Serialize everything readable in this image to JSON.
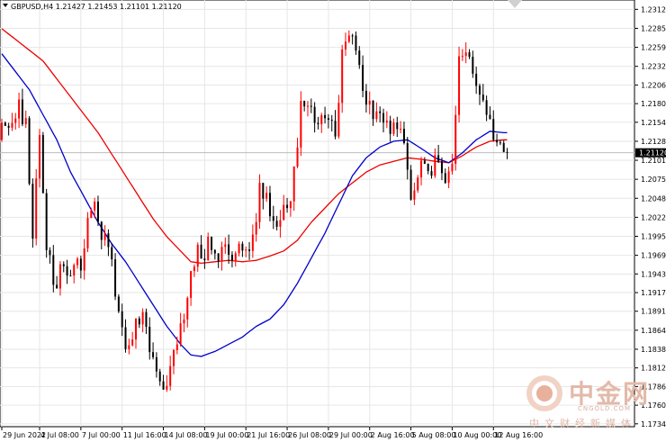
{
  "symbol_line": "GBPUSD,H4  1.21427 1.21453 1.21101 1.21120",
  "watermark": {
    "brand": "中金网",
    "url": "CNGOLD.COM",
    "subtitle": "中文财经新媒体"
  },
  "colors": {
    "bull": "#ff0000",
    "bear": "#000000",
    "ma_fast": "#0000cc",
    "ma_slow": "#ee0000",
    "grid": "#e6e6e6"
  },
  "chart_data": {
    "type": "candlestick",
    "symbol": "GBPUSD",
    "timeframe": "H4",
    "last_price": "1.21120",
    "y_ticks": [
      "1.23120",
      "1.22855",
      "1.22590",
      "1.22325",
      "1.22065",
      "1.21805",
      "1.21545",
      "1.21280",
      "1.21015",
      "1.20750",
      "1.20485",
      "1.20220",
      "1.19955",
      "1.19690",
      "1.19430",
      "1.19170",
      "1.18910",
      "1.18645",
      "1.18380",
      "1.18120",
      "1.17860",
      "1.17600",
      "1.17340"
    ],
    "ylim": [
      1.173,
      1.2325
    ],
    "x_labels": [
      "29 Jun 2022",
      "4 Jul 08:00",
      "7 Jul 00:00",
      "11 Jul 16:00",
      "14 Jul 08:00",
      "19 Jul 00:00",
      "21 Jul 16:00",
      "26 Jul 08:00",
      "29 Jul 00:00",
      "2 Aug 16:00",
      "5 Aug 08:00",
      "10 Aug 00:00",
      "12 Aug 16:00"
    ],
    "x_label_bars": [
      0,
      11,
      23,
      35,
      47,
      59,
      71,
      83,
      95,
      107,
      119,
      131,
      143
    ],
    "anchors": [
      [
        0,
        1.214
      ],
      [
        3,
        1.215
      ],
      [
        5,
        1.2175
      ],
      [
        7,
        1.2155
      ],
      [
        9,
        1.1995
      ],
      [
        11,
        1.213
      ],
      [
        13,
        1.199
      ],
      [
        15,
        1.1925
      ],
      [
        17,
        1.195
      ],
      [
        19,
        1.193
      ],
      [
        21,
        1.197
      ],
      [
        23,
        1.195
      ],
      [
        25,
        1.201
      ],
      [
        27,
        1.2035
      ],
      [
        29,
        1.199
      ],
      [
        31,
        1.1995
      ],
      [
        33,
        1.192
      ],
      [
        35,
        1.187
      ],
      [
        37,
        1.183
      ],
      [
        39,
        1.187
      ],
      [
        41,
        1.189
      ],
      [
        43,
        1.183
      ],
      [
        45,
        1.18
      ],
      [
        47,
        1.178
      ],
      [
        49,
        1.18
      ],
      [
        51,
        1.185
      ],
      [
        53,
        1.187
      ],
      [
        55,
        1.195
      ],
      [
        57,
        1.198
      ],
      [
        59,
        1.1975
      ],
      [
        61,
        1.199
      ],
      [
        63,
        1.1975
      ],
      [
        65,
        1.199
      ],
      [
        67,
        1.197
      ],
      [
        69,
        1.198
      ],
      [
        71,
        1.1965
      ],
      [
        73,
        1.2
      ],
      [
        75,
        1.206
      ],
      [
        77,
        1.205
      ],
      [
        79,
        1.201
      ],
      [
        81,
        1.203
      ],
      [
        83,
        1.202
      ],
      [
        85,
        1.209
      ],
      [
        87,
        1.217
      ],
      [
        89,
        1.2175
      ],
      [
        91,
        1.2165
      ],
      [
        93,
        1.215
      ],
      [
        95,
        1.2165
      ],
      [
        97,
        1.212
      ],
      [
        99,
        1.225
      ],
      [
        101,
        1.228
      ],
      [
        103,
        1.226
      ],
      [
        105,
        1.22
      ],
      [
        107,
        1.218
      ],
      [
        109,
        1.2165
      ],
      [
        111,
        1.215
      ],
      [
        113,
        1.2145
      ],
      [
        115,
        1.215
      ],
      [
        117,
        1.213
      ],
      [
        119,
        1.205
      ],
      [
        121,
        1.208
      ],
      [
        123,
        1.21
      ],
      [
        125,
        1.2085
      ],
      [
        127,
        1.211
      ],
      [
        129,
        1.208
      ],
      [
        131,
        1.209
      ],
      [
        133,
        1.225
      ],
      [
        135,
        1.2245
      ],
      [
        137,
        1.223
      ],
      [
        139,
        1.22
      ],
      [
        141,
        1.217
      ],
      [
        143,
        1.213
      ],
      [
        145,
        1.214
      ],
      [
        147,
        1.2112
      ]
    ],
    "ma_fast_points": [
      [
        0,
        1.225
      ],
      [
        4,
        1.2225
      ],
      [
        8,
        1.22
      ],
      [
        12,
        1.2165
      ],
      [
        16,
        1.213
      ],
      [
        20,
        1.2085
      ],
      [
        24,
        1.205
      ],
      [
        28,
        1.2015
      ],
      [
        32,
        1.1985
      ],
      [
        36,
        1.196
      ],
      [
        40,
        1.193
      ],
      [
        44,
        1.19
      ],
      [
        48,
        1.187
      ],
      [
        52,
        1.1845
      ],
      [
        55,
        1.183
      ],
      [
        58,
        1.1828
      ],
      [
        62,
        1.1835
      ],
      [
        66,
        1.1845
      ],
      [
        70,
        1.1855
      ],
      [
        74,
        1.187
      ],
      [
        78,
        1.188
      ],
      [
        82,
        1.19
      ],
      [
        86,
        1.193
      ],
      [
        90,
        1.1965
      ],
      [
        94,
        1.2
      ],
      [
        98,
        1.204
      ],
      [
        102,
        1.208
      ],
      [
        106,
        1.2105
      ],
      [
        110,
        1.212
      ],
      [
        114,
        1.2128
      ],
      [
        118,
        1.213
      ],
      [
        122,
        1.2118
      ],
      [
        126,
        1.2105
      ],
      [
        130,
        1.2098
      ],
      [
        134,
        1.2112
      ],
      [
        138,
        1.213
      ],
      [
        142,
        1.2142
      ],
      [
        146,
        1.214
      ]
    ],
    "ma_slow_points": [
      [
        0,
        1.2285
      ],
      [
        4,
        1.227
      ],
      [
        8,
        1.2255
      ],
      [
        12,
        1.224
      ],
      [
        16,
        1.2215
      ],
      [
        20,
        1.219
      ],
      [
        24,
        1.2165
      ],
      [
        28,
        1.214
      ],
      [
        32,
        1.211
      ],
      [
        36,
        1.208
      ],
      [
        40,
        1.205
      ],
      [
        44,
        1.202
      ],
      [
        48,
        1.1995
      ],
      [
        52,
        1.1975
      ],
      [
        55,
        1.196
      ],
      [
        58,
        1.1958
      ],
      [
        62,
        1.196
      ],
      [
        66,
        1.1962
      ],
      [
        70,
        1.196
      ],
      [
        74,
        1.1962
      ],
      [
        78,
        1.1968
      ],
      [
        82,
        1.1975
      ],
      [
        86,
        1.199
      ],
      [
        90,
        1.2015
      ],
      [
        94,
        1.2035
      ],
      [
        98,
        1.2055
      ],
      [
        102,
        1.207
      ],
      [
        106,
        1.2085
      ],
      [
        110,
        1.2095
      ],
      [
        114,
        1.21
      ],
      [
        118,
        1.2105
      ],
      [
        122,
        1.2103
      ],
      [
        126,
        1.21
      ],
      [
        130,
        1.2098
      ],
      [
        134,
        1.2108
      ],
      [
        138,
        1.212
      ],
      [
        142,
        1.2128
      ],
      [
        146,
        1.213
      ]
    ],
    "bar_count": 148,
    "grid": true
  }
}
